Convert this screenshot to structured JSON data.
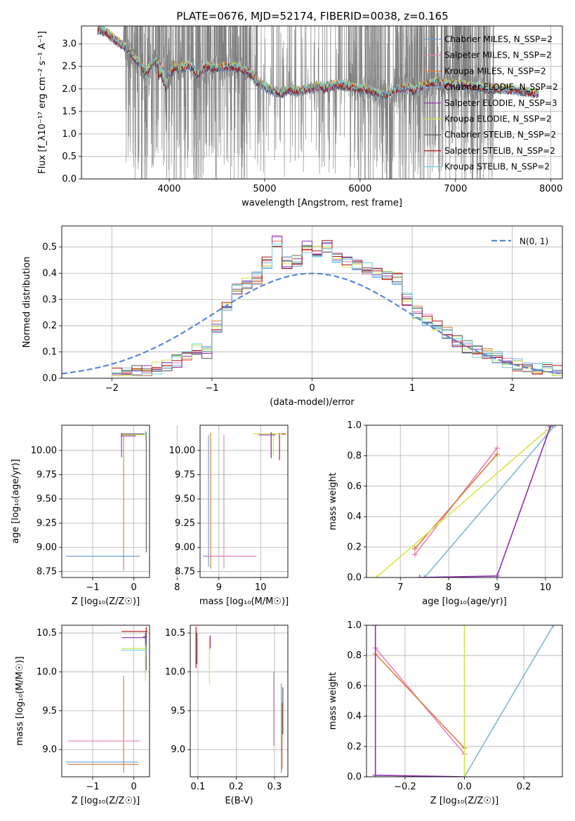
{
  "figure": {
    "title": "PLATE=0676, MJD=52174, FIBERID=0038, z=0.165"
  },
  "series_colors": {
    "Chabrier MILES": "#6a9fd9",
    "Salpeter MILES": "#e87fbd",
    "Kroupa MILES": "#e07b39",
    "Chabrier ELODIE": "#7fb8d2",
    "Salpeter ELODIE": "#8e2fb5",
    "Kroupa ELODIE": "#d2e840",
    "Chabrier STELIB": "#555555",
    "Salpeter STELIB": "#b01010",
    "Kroupa STELIB": "#6fd3d9",
    "data": "#808080",
    "normal": "#5b87d6"
  },
  "chart_data": [
    {
      "id": "spectrum",
      "type": "line",
      "xlabel": "wavelength [Angstrom, rest frame]",
      "ylabel": "Flux [f_λ10⁻¹⁷ erg cm⁻² s⁻¹ A⁻¹]",
      "xlim": [
        3080,
        8120
      ],
      "ylim": [
        0,
        3.4
      ],
      "xticks": [
        "4000",
        "5000",
        "6000",
        "7000",
        "8000"
      ],
      "yticks": [
        "0.0",
        "0.5",
        "1.0",
        "1.5",
        "2.0",
        "2.5",
        "3.0"
      ],
      "legend_position": "top-right",
      "legend": [
        "Chabrier MILES, N_SSP=2",
        "Salpeter MILES, N_SSP=2",
        "Kroupa MILES, N_SSP=2",
        "Chabrier ELODIE, N_SSP=2",
        "Salpeter ELODIE, N_SSP=3",
        "Kroupa ELODIE, N_SSP=2",
        "Chabrier STELIB, N_SSP=2",
        "Salpeter STELIB, N_SSP=2",
        "Kroupa STELIB, N_SSP=2"
      ],
      "model_continuum": {
        "x": [
          3250,
          3330,
          3400,
          3480,
          3560,
          3620,
          3680,
          3720,
          3760,
          3800,
          3840,
          3880,
          3930,
          3970,
          4010,
          4060,
          4100,
          4150,
          4200,
          4260,
          4300,
          4340,
          4400,
          4500,
          4600,
          4700,
          4800,
          4860,
          4900,
          5000,
          5100,
          5175,
          5250,
          5350,
          5450,
          5550,
          5650,
          5750,
          5850,
          5900,
          6000,
          6100,
          6200,
          6260,
          6300,
          6400,
          6500,
          6563,
          6600,
          6700,
          6800,
          6900,
          7000,
          7100,
          7200,
          7300,
          7400,
          7500,
          7600,
          7700,
          7800,
          7870
        ],
        "y": [
          3.32,
          3.28,
          3.15,
          3.02,
          2.9,
          2.72,
          2.6,
          2.45,
          2.35,
          2.5,
          2.62,
          2.55,
          2.45,
          2.2,
          2.35,
          2.5,
          2.45,
          2.48,
          2.52,
          2.45,
          2.3,
          2.42,
          2.5,
          2.45,
          2.5,
          2.48,
          2.42,
          2.3,
          2.2,
          2.05,
          1.95,
          1.9,
          2.0,
          1.95,
          2.0,
          2.05,
          2.02,
          2.1,
          2.08,
          2.05,
          2.0,
          1.98,
          1.9,
          1.85,
          1.92,
          2.0,
          2.05,
          1.95,
          2.02,
          2.1,
          2.15,
          2.12,
          2.1,
          2.08,
          2.05,
          2.02,
          2.0,
          2.0,
          1.98,
          1.95,
          1.92,
          1.9
        ]
      },
      "data_range": [
        3250,
        7870
      ]
    },
    {
      "id": "residuals",
      "type": "line",
      "xlabel": "(data-model)/error",
      "ylabel": "Normed distribution",
      "xlim": [
        -2.5,
        2.5
      ],
      "ylim": [
        0,
        0.58
      ],
      "xticks": [
        "−2",
        "−1",
        "0",
        "1",
        "2"
      ],
      "yticks": [
        "0.0",
        "0.1",
        "0.2",
        "0.3",
        "0.4",
        "0.5"
      ],
      "legend_position": "top-right",
      "legend": [
        "N(0, 1)"
      ],
      "histogram_edges": [
        -2.0,
        -1.9,
        -1.8,
        -1.7,
        -1.6,
        -1.5,
        -1.4,
        -1.3,
        -1.2,
        -1.1,
        -1.0,
        -0.9,
        -0.8,
        -0.7,
        -0.6,
        -0.5,
        -0.4,
        -0.3,
        -0.2,
        -0.1,
        0.0,
        0.1,
        0.2,
        0.3,
        0.4,
        0.5,
        0.6,
        0.7,
        0.8,
        0.9,
        1.0,
        1.1,
        1.2,
        1.3,
        1.4,
        1.5,
        1.6,
        1.7,
        1.8,
        1.9,
        2.0,
        2.1,
        2.2,
        2.3,
        2.4,
        2.5
      ],
      "histogram_values": [
        0.02,
        0.025,
        0.03,
        0.03,
        0.04,
        0.05,
        0.065,
        0.09,
        0.11,
        0.1,
        0.2,
        0.27,
        0.34,
        0.36,
        0.38,
        0.44,
        0.52,
        0.44,
        0.45,
        0.5,
        0.48,
        0.5,
        0.46,
        0.44,
        0.43,
        0.42,
        0.4,
        0.4,
        0.38,
        0.3,
        0.25,
        0.22,
        0.2,
        0.17,
        0.14,
        0.12,
        0.1,
        0.09,
        0.08,
        0.06,
        0.05,
        0.045,
        0.04,
        0.035,
        0.03
      ]
    },
    {
      "id": "age-vs-Z",
      "type": "scatter",
      "xlabel": "Z [log₁₀(Z/Z☉)]",
      "ylabel": "age  [log₁₀(age/yr)]",
      "xlim": [
        -1.75,
        0.38
      ],
      "ylim": [
        8.69,
        10.26
      ],
      "xticks": [
        "−1",
        "0"
      ],
      "yticks": [
        "8.75",
        "9.00",
        "9.25",
        "9.50",
        "9.75",
        "10.00"
      ]
    },
    {
      "id": "age-vs-mass",
      "type": "scatter",
      "xlabel": "mass [log₁₀(M/M☉)]",
      "ylabel": "",
      "xlim": [
        8.55,
        10.65
      ],
      "ylim": [
        8.69,
        10.26
      ],
      "xticks": [
        "8",
        "9",
        "10"
      ],
      "yticks": [
        "8.75",
        "9.00",
        "9.25",
        "9.50",
        "9.75",
        "10.00"
      ]
    },
    {
      "id": "mass-weight-vs-age",
      "type": "line",
      "xlabel": "age  [log₁₀(age/yr)]",
      "ylabel": "mass weight",
      "xlim": [
        6.3,
        10.35
      ],
      "ylim": [
        0,
        1.0
      ],
      "xticks": [
        "7",
        "8",
        "9",
        "10"
      ],
      "yticks": [
        "0.0",
        "0.2",
        "0.4",
        "0.6",
        "0.8",
        "1.0"
      ],
      "series": [
        {
          "name": "Salpeter MILES",
          "x": [
            7.3,
            9.0
          ],
          "y": [
            0.15,
            0.85
          ]
        },
        {
          "name": "Kroupa MILES",
          "x": [
            7.3,
            9.0
          ],
          "y": [
            0.19,
            0.81
          ]
        },
        {
          "name": "Kroupa ELODIE",
          "x": [
            6.5,
            10.15
          ],
          "y": [
            0.0,
            1.0
          ]
        },
        {
          "name": "Chabrier ELODIE",
          "x": [
            7.5,
            10.2
          ],
          "y": [
            0.0,
            1.0
          ]
        },
        {
          "name": "Salpeter ELODIE",
          "x": [
            7.4,
            9.0,
            10.1
          ],
          "y": [
            0.0,
            0.01,
            0.99
          ]
        }
      ]
    },
    {
      "id": "mass-vs-Z",
      "type": "scatter",
      "xlabel": "Z [log₁₀(Z/Z☉)]",
      "ylabel": "mass [log₁₀(M/M☉)]",
      "xlim": [
        -1.75,
        0.38
      ],
      "ylim": [
        8.65,
        10.6
      ],
      "xticks": [
        "−1",
        "0"
      ],
      "yticks": [
        "9.0",
        "9.5",
        "10.0",
        "10.5"
      ]
    },
    {
      "id": "mass-vs-ebv",
      "type": "scatter",
      "xlabel": "E(B-V)",
      "ylabel": "",
      "xlim": [
        0.08,
        0.335
      ],
      "ylim": [
        8.65,
        10.6
      ],
      "xticks": [
        "0.1",
        "0.2",
        "0.3"
      ],
      "yticks": [
        "9.0",
        "9.5",
        "10.0",
        "10.5"
      ]
    },
    {
      "id": "mass-weight-vs-Z",
      "type": "line",
      "xlabel": "Z [log₁₀(Z/Z☉)]",
      "ylabel": "mass weight",
      "xlim": [
        -0.33,
        0.33
      ],
      "ylim": [
        0,
        1.0
      ],
      "xticks": [
        "−0.2",
        "0.0",
        "0.2"
      ],
      "yticks": [
        "0.0",
        "0.2",
        "0.4",
        "0.6",
        "0.8",
        "1.0"
      ],
      "series": [
        {
          "name": "Salpeter MILES",
          "x": [
            -0.3,
            0.0
          ],
          "y": [
            0.85,
            0.15
          ]
        },
        {
          "name": "Kroupa MILES",
          "x": [
            -0.3,
            0.0
          ],
          "y": [
            0.81,
            0.19
          ]
        },
        {
          "name": "Salpeter ELODIE",
          "x": [
            -0.3,
            -0.3,
            0.0
          ],
          "y": [
            1.0,
            0.01,
            0.0
          ]
        },
        {
          "name": "Chabrier ELODIE",
          "x": [
            0.0,
            0.3
          ],
          "y": [
            0.0,
            1.0
          ]
        },
        {
          "name": "Kroupa ELODIE",
          "x": [
            0.0,
            0.0
          ],
          "y": [
            0.0,
            1.0
          ]
        }
      ]
    }
  ]
}
